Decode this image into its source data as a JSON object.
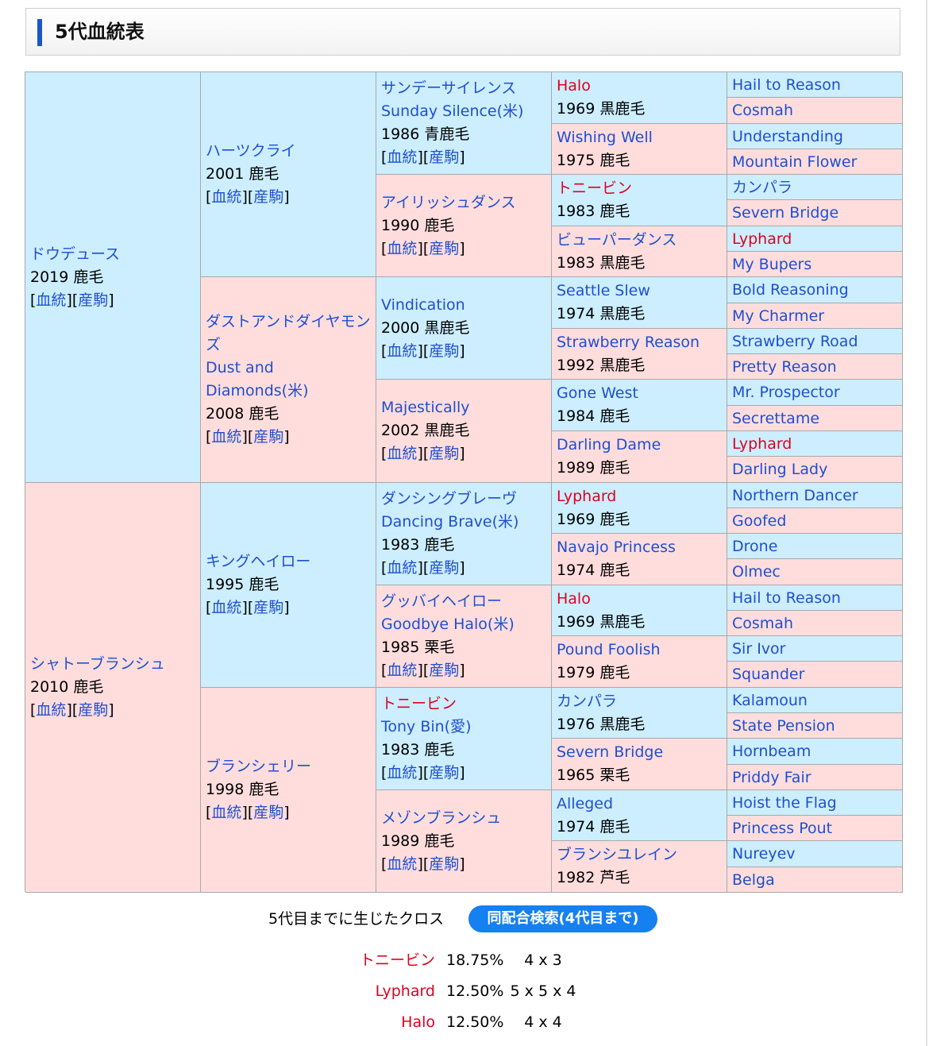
{
  "title": "5代血統表",
  "links": [
    "血統",
    "産駒"
  ],
  "gen1": [
    {
      "name": "ドウデュース",
      "info": "2019 鹿毛"
    },
    {
      "name": "シャトーブランシュ",
      "info": "2010 鹿毛"
    }
  ],
  "gen2": [
    {
      "name": "ハーツクライ",
      "name2": "",
      "info": "2001 鹿毛"
    },
    {
      "name": "ダストアンドダイヤモンズ",
      "name2": "Dust and Diamonds(米)",
      "info": "2008 鹿毛"
    },
    {
      "name": "キングヘイロー",
      "name2": "",
      "info": "1995 鹿毛"
    },
    {
      "name": "ブランシェリー",
      "name2": "",
      "info": "1998 鹿毛"
    }
  ],
  "gen3": [
    {
      "name": "サンデーサイレンス",
      "name2": "Sunday Silence(米)",
      "info": "1986 青鹿毛"
    },
    {
      "name": "アイリッシュダンス",
      "name2": "",
      "info": "1990 鹿毛"
    },
    {
      "name": "Vindication",
      "name2": "",
      "info": "2000 黒鹿毛"
    },
    {
      "name": "Majestically",
      "name2": "",
      "info": "2002 黒鹿毛"
    },
    {
      "name": "ダンシングブレーヴ",
      "name2": "Dancing Brave(米)",
      "info": "1983 鹿毛"
    },
    {
      "name": "グッバイヘイロー",
      "name2": "Goodbye Halo(米)",
      "info": "1985 栗毛"
    },
    {
      "name": "トニービン",
      "name2": "Tony Bin(愛)",
      "info": "1983 鹿毛"
    },
    {
      "name": "メゾンブランシュ",
      "name2": "",
      "info": "1989 鹿毛"
    }
  ],
  "gen4": [
    {
      "name": "Halo",
      "info": "1969 黒鹿毛"
    },
    {
      "name": "Wishing Well",
      "info": "1975 鹿毛"
    },
    {
      "name": "トニービン",
      "info": "1983 鹿毛"
    },
    {
      "name": "ビューパーダンス",
      "info": "1983 黒鹿毛"
    },
    {
      "name": "Seattle Slew",
      "info": "1974 黒鹿毛"
    },
    {
      "name": "Strawberry Reason",
      "info": "1992 黒鹿毛"
    },
    {
      "name": "Gone West",
      "info": "1984 鹿毛"
    },
    {
      "name": "Darling Dame",
      "info": "1989 鹿毛"
    },
    {
      "name": "Lyphard",
      "info": "1969 鹿毛"
    },
    {
      "name": "Navajo Princess",
      "info": "1974 鹿毛"
    },
    {
      "name": "Halo",
      "info": "1969 黒鹿毛"
    },
    {
      "name": "Pound Foolish",
      "info": "1979 鹿毛"
    },
    {
      "name": "カンパラ",
      "info": "1976 黒鹿毛"
    },
    {
      "name": "Severn Bridge",
      "info": "1965 栗毛"
    },
    {
      "name": "Alleged",
      "info": "1974 鹿毛"
    },
    {
      "name": "ブランシユレイン",
      "info": "1982 芦毛"
    }
  ],
  "gen5": [
    "Hail to Reason",
    "Cosmah",
    "Understanding",
    "Mountain Flower",
    "カンパラ",
    "Severn Bridge",
    "Lyphard",
    "My Bupers",
    "Bold Reasoning",
    "My Charmer",
    "Strawberry Road",
    "Pretty Reason",
    "Mr. Prospector",
    "Secrettame",
    "Lyphard",
    "Darling Lady",
    "Northern Dancer",
    "Goofed",
    "Drone",
    "Olmec",
    "Hail to Reason",
    "Cosmah",
    "Sir Ivor",
    "Squander",
    "Kalamoun",
    "State Pension",
    "Hornbeam",
    "Priddy Fair",
    "Hoist the Flag",
    "Princess Pout",
    "Nureyev",
    "Belga"
  ],
  "cross_label": "5代目までに生じたクロス",
  "search_button": "同配合検索(4代目まで)",
  "crosses": [
    {
      "name": "トニービン",
      "percent": "18.75%",
      "pattern": "4 x 3"
    },
    {
      "name": "Lyphard",
      "percent": "12.50%",
      "pattern": "5 x 5 x 4"
    },
    {
      "name": "Halo",
      "percent": "12.50%",
      "pattern": "4 x 4"
    }
  ],
  "colors": {
    "male_bg": "#cceeff",
    "female_bg": "#ffdddd",
    "link": "#1f4fd0",
    "inbreed": "#e0001e",
    "button": "#1580f0"
  }
}
